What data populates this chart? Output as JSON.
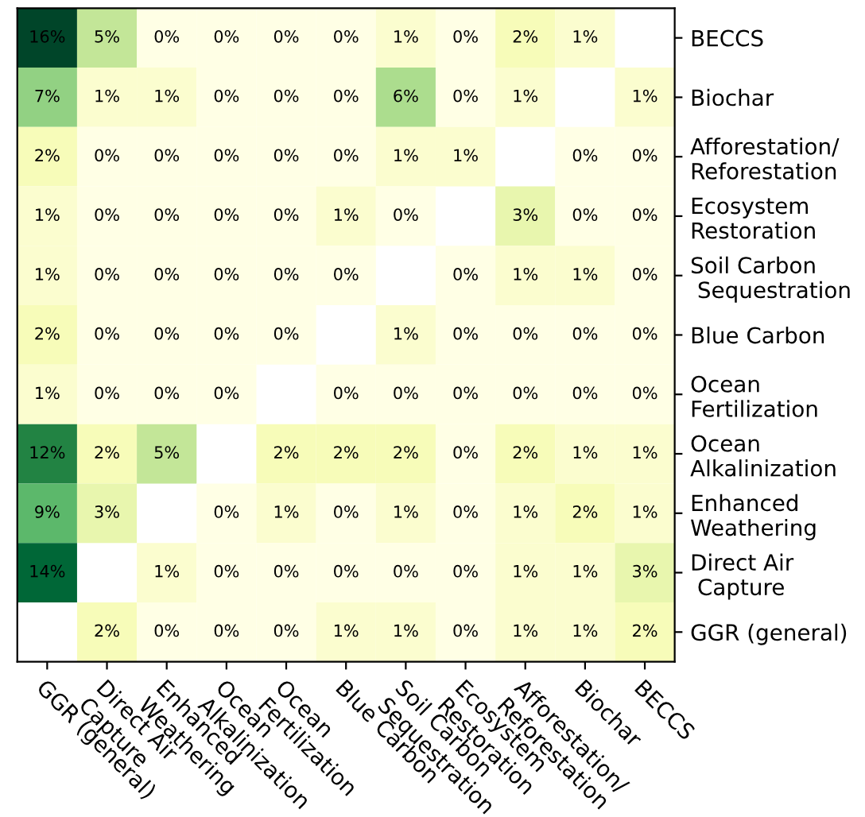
{
  "chart_data": {
    "type": "heatmap",
    "categories": [
      "GGR (general)",
      "Direct Air\nCapture",
      "Enhanced\nWeathering",
      "Ocean\nAlkalinization",
      "Ocean\nFertilization",
      "Blue Carbon",
      "Soil Carbon\nSequestration",
      "Ecosystem\nRestoration",
      "Afforestation/\nReforestation",
      "Biochar",
      "BECCS"
    ],
    "y_categories": [
      "BECCS",
      "Biochar",
      "Afforestation/\nReforestation",
      "Ecosystem\nRestoration",
      "Soil Carbon\n Sequestration",
      "Blue Carbon",
      "Ocean\nFertilization",
      "Ocean\nAlkalinization",
      "Enhanced\nWeathering",
      "Direct Air\n Capture",
      "GGR (general)"
    ],
    "cells": [
      [
        16,
        5,
        0,
        0,
        0,
        0,
        1,
        0,
        2,
        1,
        null
      ],
      [
        7,
        1,
        1,
        0,
        0,
        0,
        6,
        0,
        1,
        null,
        1
      ],
      [
        2,
        0,
        0,
        0,
        0,
        0,
        1,
        1,
        null,
        0,
        0
      ],
      [
        1,
        0,
        0,
        0,
        0,
        1,
        0,
        null,
        3,
        0,
        0
      ],
      [
        1,
        0,
        0,
        0,
        0,
        0,
        null,
        0,
        1,
        1,
        0
      ],
      [
        2,
        0,
        0,
        0,
        0,
        null,
        1,
        0,
        0,
        0,
        0
      ],
      [
        1,
        0,
        0,
        0,
        null,
        0,
        0,
        0,
        0,
        0,
        0
      ],
      [
        12,
        2,
        5,
        null,
        2,
        2,
        2,
        0,
        2,
        1,
        1
      ],
      [
        9,
        3,
        null,
        0,
        1,
        0,
        1,
        0,
        1,
        2,
        1
      ],
      [
        14,
        null,
        1,
        0,
        0,
        0,
        0,
        0,
        1,
        1,
        3
      ],
      [
        null,
        2,
        0,
        0,
        0,
        1,
        1,
        0,
        1,
        1,
        2
      ]
    ],
    "cell_labels": [
      [
        "16%",
        "5%",
        "0%",
        "0%",
        "0%",
        "0%",
        "1%",
        "0%",
        "2%",
        "1%",
        null
      ],
      [
        "7%",
        "1%",
        "1%",
        "0%",
        "0%",
        "0%",
        "6%",
        "0%",
        "1%",
        null,
        "1%"
      ],
      [
        "2%",
        "0%",
        "0%",
        "0%",
        "0%",
        "0%",
        "1%",
        "1%",
        null,
        "0%",
        "0%"
      ],
      [
        "1%",
        "0%",
        "0%",
        "0%",
        "0%",
        "1%",
        "0%",
        null,
        "3%",
        "0%",
        "0%"
      ],
      [
        "1%",
        "0%",
        "0%",
        "0%",
        "0%",
        "0%",
        null,
        "0%",
        "1%",
        "1%",
        "0%"
      ],
      [
        "2%",
        "0%",
        "0%",
        "0%",
        "0%",
        null,
        "1%",
        "0%",
        "0%",
        "0%",
        "0%"
      ],
      [
        "1%",
        "0%",
        "0%",
        "0%",
        null,
        "0%",
        "0%",
        "0%",
        "0%",
        "0%",
        "0%"
      ],
      [
        "12%",
        "2%",
        "5%",
        null,
        "2%",
        "2%",
        "2%",
        "0%",
        "2%",
        "1%",
        "1%"
      ],
      [
        "9%",
        "3%",
        null,
        "0%",
        "1%",
        "0%",
        "1%",
        "0%",
        "1%",
        "2%",
        "1%"
      ],
      [
        "14%",
        null,
        "1%",
        "0%",
        "0%",
        "0%",
        "0%",
        "0%",
        "1%",
        "1%",
        "3%"
      ],
      [
        null,
        "2%",
        "0%",
        "0%",
        "0%",
        "1%",
        "1%",
        "0%",
        "1%",
        "1%",
        "2%"
      ]
    ]
  }
}
